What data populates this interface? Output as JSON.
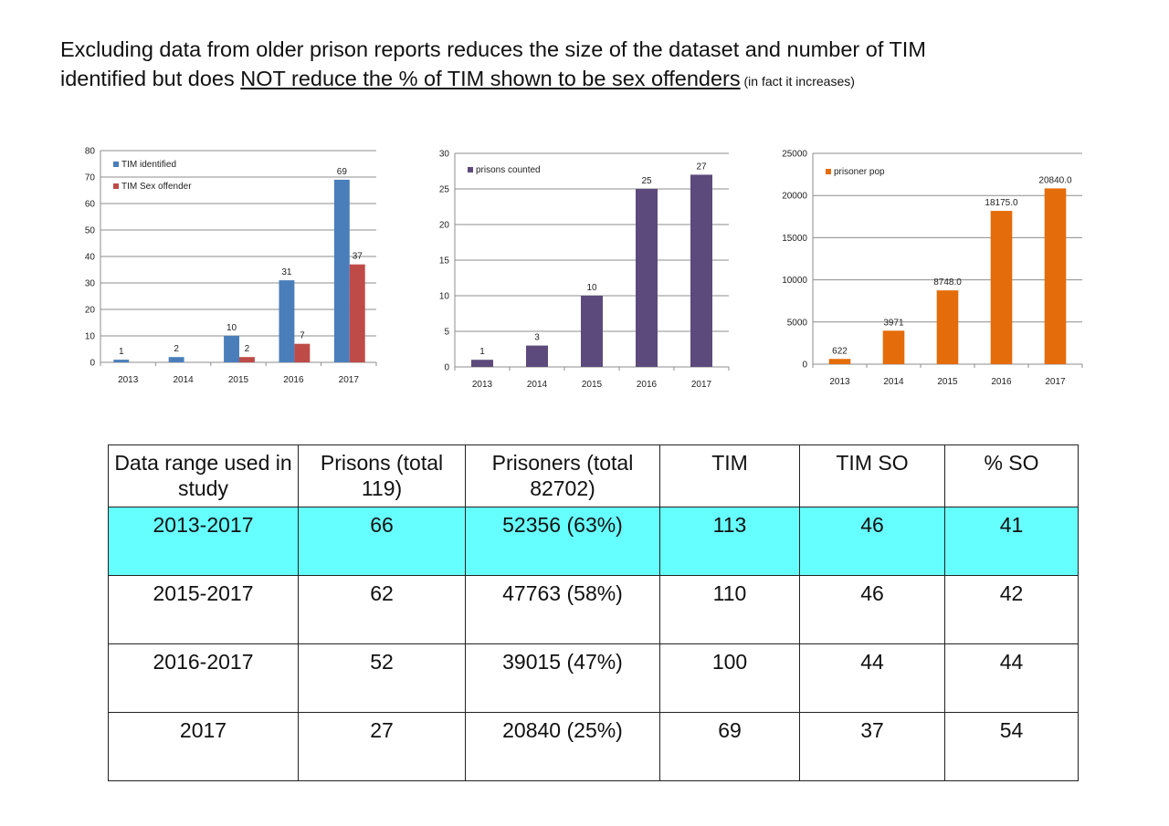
{
  "header": {
    "line1": "Excluding data from older prison reports reduces the size of the dataset and number of TIM",
    "line2_pre": "identified but does ",
    "line2_ul": "NOT reduce the % of TIM shown to be sex offenders",
    "line2_small": " (in fact it increases)"
  },
  "chart_data": [
    {
      "type": "bar",
      "categories": [
        "2013",
        "2014",
        "2015",
        "2016",
        "2017"
      ],
      "series": [
        {
          "name": "TIM identified",
          "values": [
            1,
            2,
            10,
            31,
            69
          ],
          "color": "#4a7ebb"
        },
        {
          "name": "TIM Sex offender",
          "values": [
            0,
            0,
            2,
            7,
            37
          ],
          "color": "#be4b48"
        }
      ],
      "data_labels": [
        [
          "1",
          "2",
          "10",
          "31",
          "69"
        ],
        [
          "",
          "",
          "2",
          "7",
          "37"
        ]
      ],
      "ylim": [
        0,
        80
      ],
      "yticks": [
        0,
        10,
        20,
        30,
        40,
        50,
        60,
        70,
        80
      ],
      "grid": true,
      "legend": "top-left"
    },
    {
      "type": "bar",
      "categories": [
        "2013",
        "2014",
        "2015",
        "2016",
        "2017"
      ],
      "series": [
        {
          "name": "prisons counted",
          "values": [
            1,
            3,
            10,
            25,
            27
          ],
          "color": "#5d4a7c"
        }
      ],
      "data_labels": [
        [
          "1",
          "3",
          "10",
          "25",
          "27"
        ]
      ],
      "ylim": [
        0,
        30
      ],
      "yticks": [
        0,
        5,
        10,
        15,
        20,
        25,
        30
      ],
      "grid": true,
      "legend": "top-left"
    },
    {
      "type": "bar",
      "categories": [
        "2013",
        "2014",
        "2015",
        "2016",
        "2017"
      ],
      "series": [
        {
          "name": "prisoner pop",
          "values": [
            622,
            3971,
            8748,
            18175,
            20840
          ],
          "color": "#e46c0a"
        }
      ],
      "data_labels": [
        [
          "622",
          "3971",
          "8748.0",
          "18175.0",
          "20840.0"
        ]
      ],
      "ylim": [
        0,
        25000
      ],
      "yticks": [
        0,
        5000,
        10000,
        15000,
        20000,
        25000
      ],
      "grid": true,
      "legend": "top-left"
    }
  ],
  "table": {
    "headers": [
      "Data range used in study",
      "Prisons (total 119)",
      "Prisoners (total 82702)",
      "TIM",
      "TIM SO",
      "% SO"
    ],
    "rows": [
      [
        "2013-2017",
        "66",
        "52356 (63%)",
        "113",
        "46",
        "41"
      ],
      [
        "2015-2017",
        "62",
        "47763 (58%)",
        "110",
        "46",
        "42"
      ],
      [
        "2016-2017",
        "52",
        "39015 (47%)",
        "100",
        "44",
        "44"
      ],
      [
        "2017",
        "27",
        "20840 (25%)",
        "69",
        "37",
        "54"
      ]
    ],
    "highlight_row": 0,
    "highlight_color": "#66ffff"
  }
}
